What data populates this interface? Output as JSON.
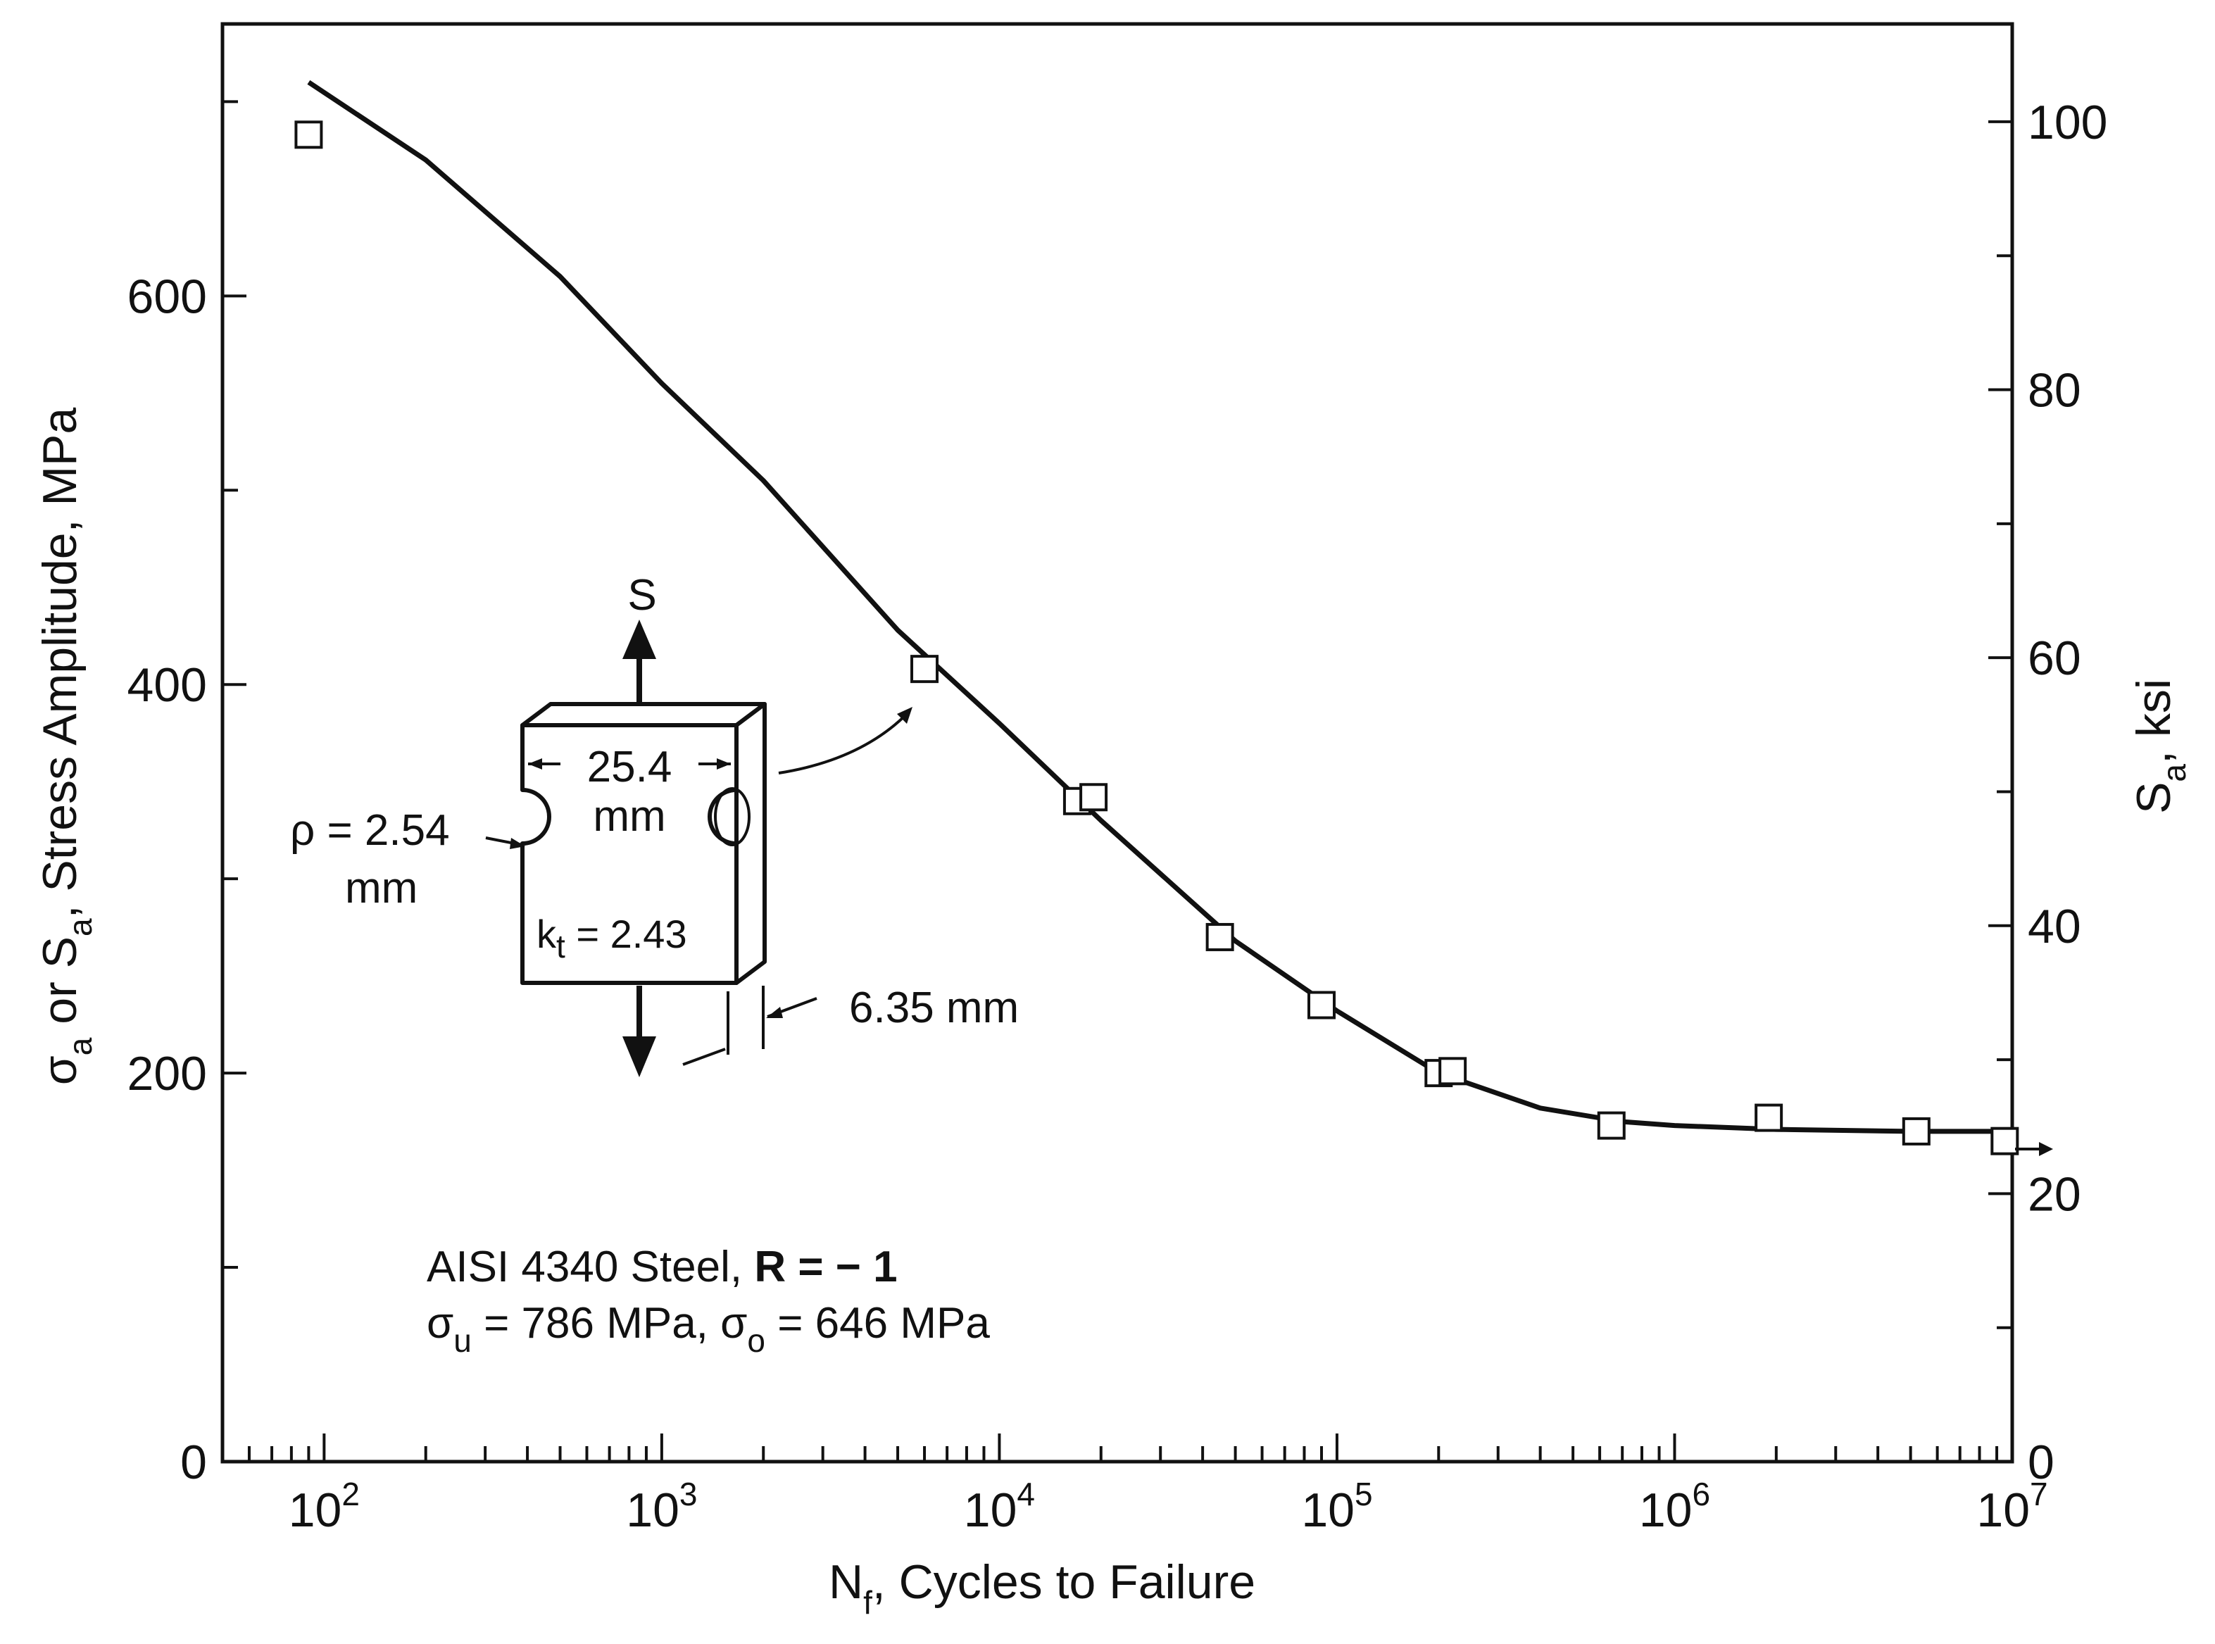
{
  "chart_data": {
    "type": "line",
    "x_scale": "log",
    "title": "",
    "xlabel": "N_f, Cycles to Failure",
    "ylabel_left": "σ_a or S_a, Stress Amplitude, MPa",
    "ylabel_right": "S_a, ksi",
    "xlim": [
      50,
      10000000
    ],
    "ylim_left": [
      0,
      740
    ],
    "ylim_right": [
      0,
      107.3
    ],
    "x_ticks": [
      {
        "value": 100,
        "base": "10",
        "exp": "2"
      },
      {
        "value": 1000,
        "base": "10",
        "exp": "3"
      },
      {
        "value": 10000,
        "base": "10",
        "exp": "4"
      },
      {
        "value": 100000,
        "base": "10",
        "exp": "5"
      },
      {
        "value": 1000000,
        "base": "10",
        "exp": "6"
      },
      {
        "value": 10000000,
        "base": "10",
        "exp": "7"
      }
    ],
    "y_left_ticks": [
      "0",
      "200",
      "400",
      "600"
    ],
    "y_right_ticks": [
      "0",
      "20",
      "40",
      "60",
      "80",
      "100"
    ],
    "grid": false,
    "series": [
      {
        "kind": "data-points",
        "marker": "open-square",
        "x": [
          90,
          6000,
          17000,
          19000,
          45000,
          90000,
          200000,
          220000,
          650000,
          1900000,
          5200000,
          9500000
        ],
        "y": [
          683,
          408,
          340,
          342,
          270,
          235,
          200,
          201,
          173,
          177,
          170,
          165
        ]
      },
      {
        "kind": "fitted-curve",
        "x": [
          90,
          200,
          500,
          1000,
          2000,
          5000,
          10000,
          20000,
          50000,
          100000,
          200000,
          400000,
          700000,
          1000000,
          2000000,
          5000000,
          10000000
        ],
        "y": [
          710,
          670,
          610,
          555,
          505,
          428,
          380,
          330,
          268,
          232,
          200,
          182,
          175,
          173,
          171,
          170,
          170
        ]
      }
    ]
  },
  "annotations": {
    "material_prefix": "AISI 4340 Steel, ",
    "ratio": "R = − 1",
    "props_u": "σ",
    "props_u_sub": "u",
    "props_u_val": " = 786 MPa, σ",
    "props_o_sub": "o",
    "props_o_val": " = 646 MPa"
  },
  "specimen": {
    "load_label": "S",
    "width": "25.4",
    "width_unit": "mm",
    "radius": "ρ = 2.54",
    "radius_unit": "mm",
    "kt_prefix": "k",
    "kt_sub": "t",
    "kt_value": " = 2.43",
    "thickness": "6.35 mm"
  }
}
